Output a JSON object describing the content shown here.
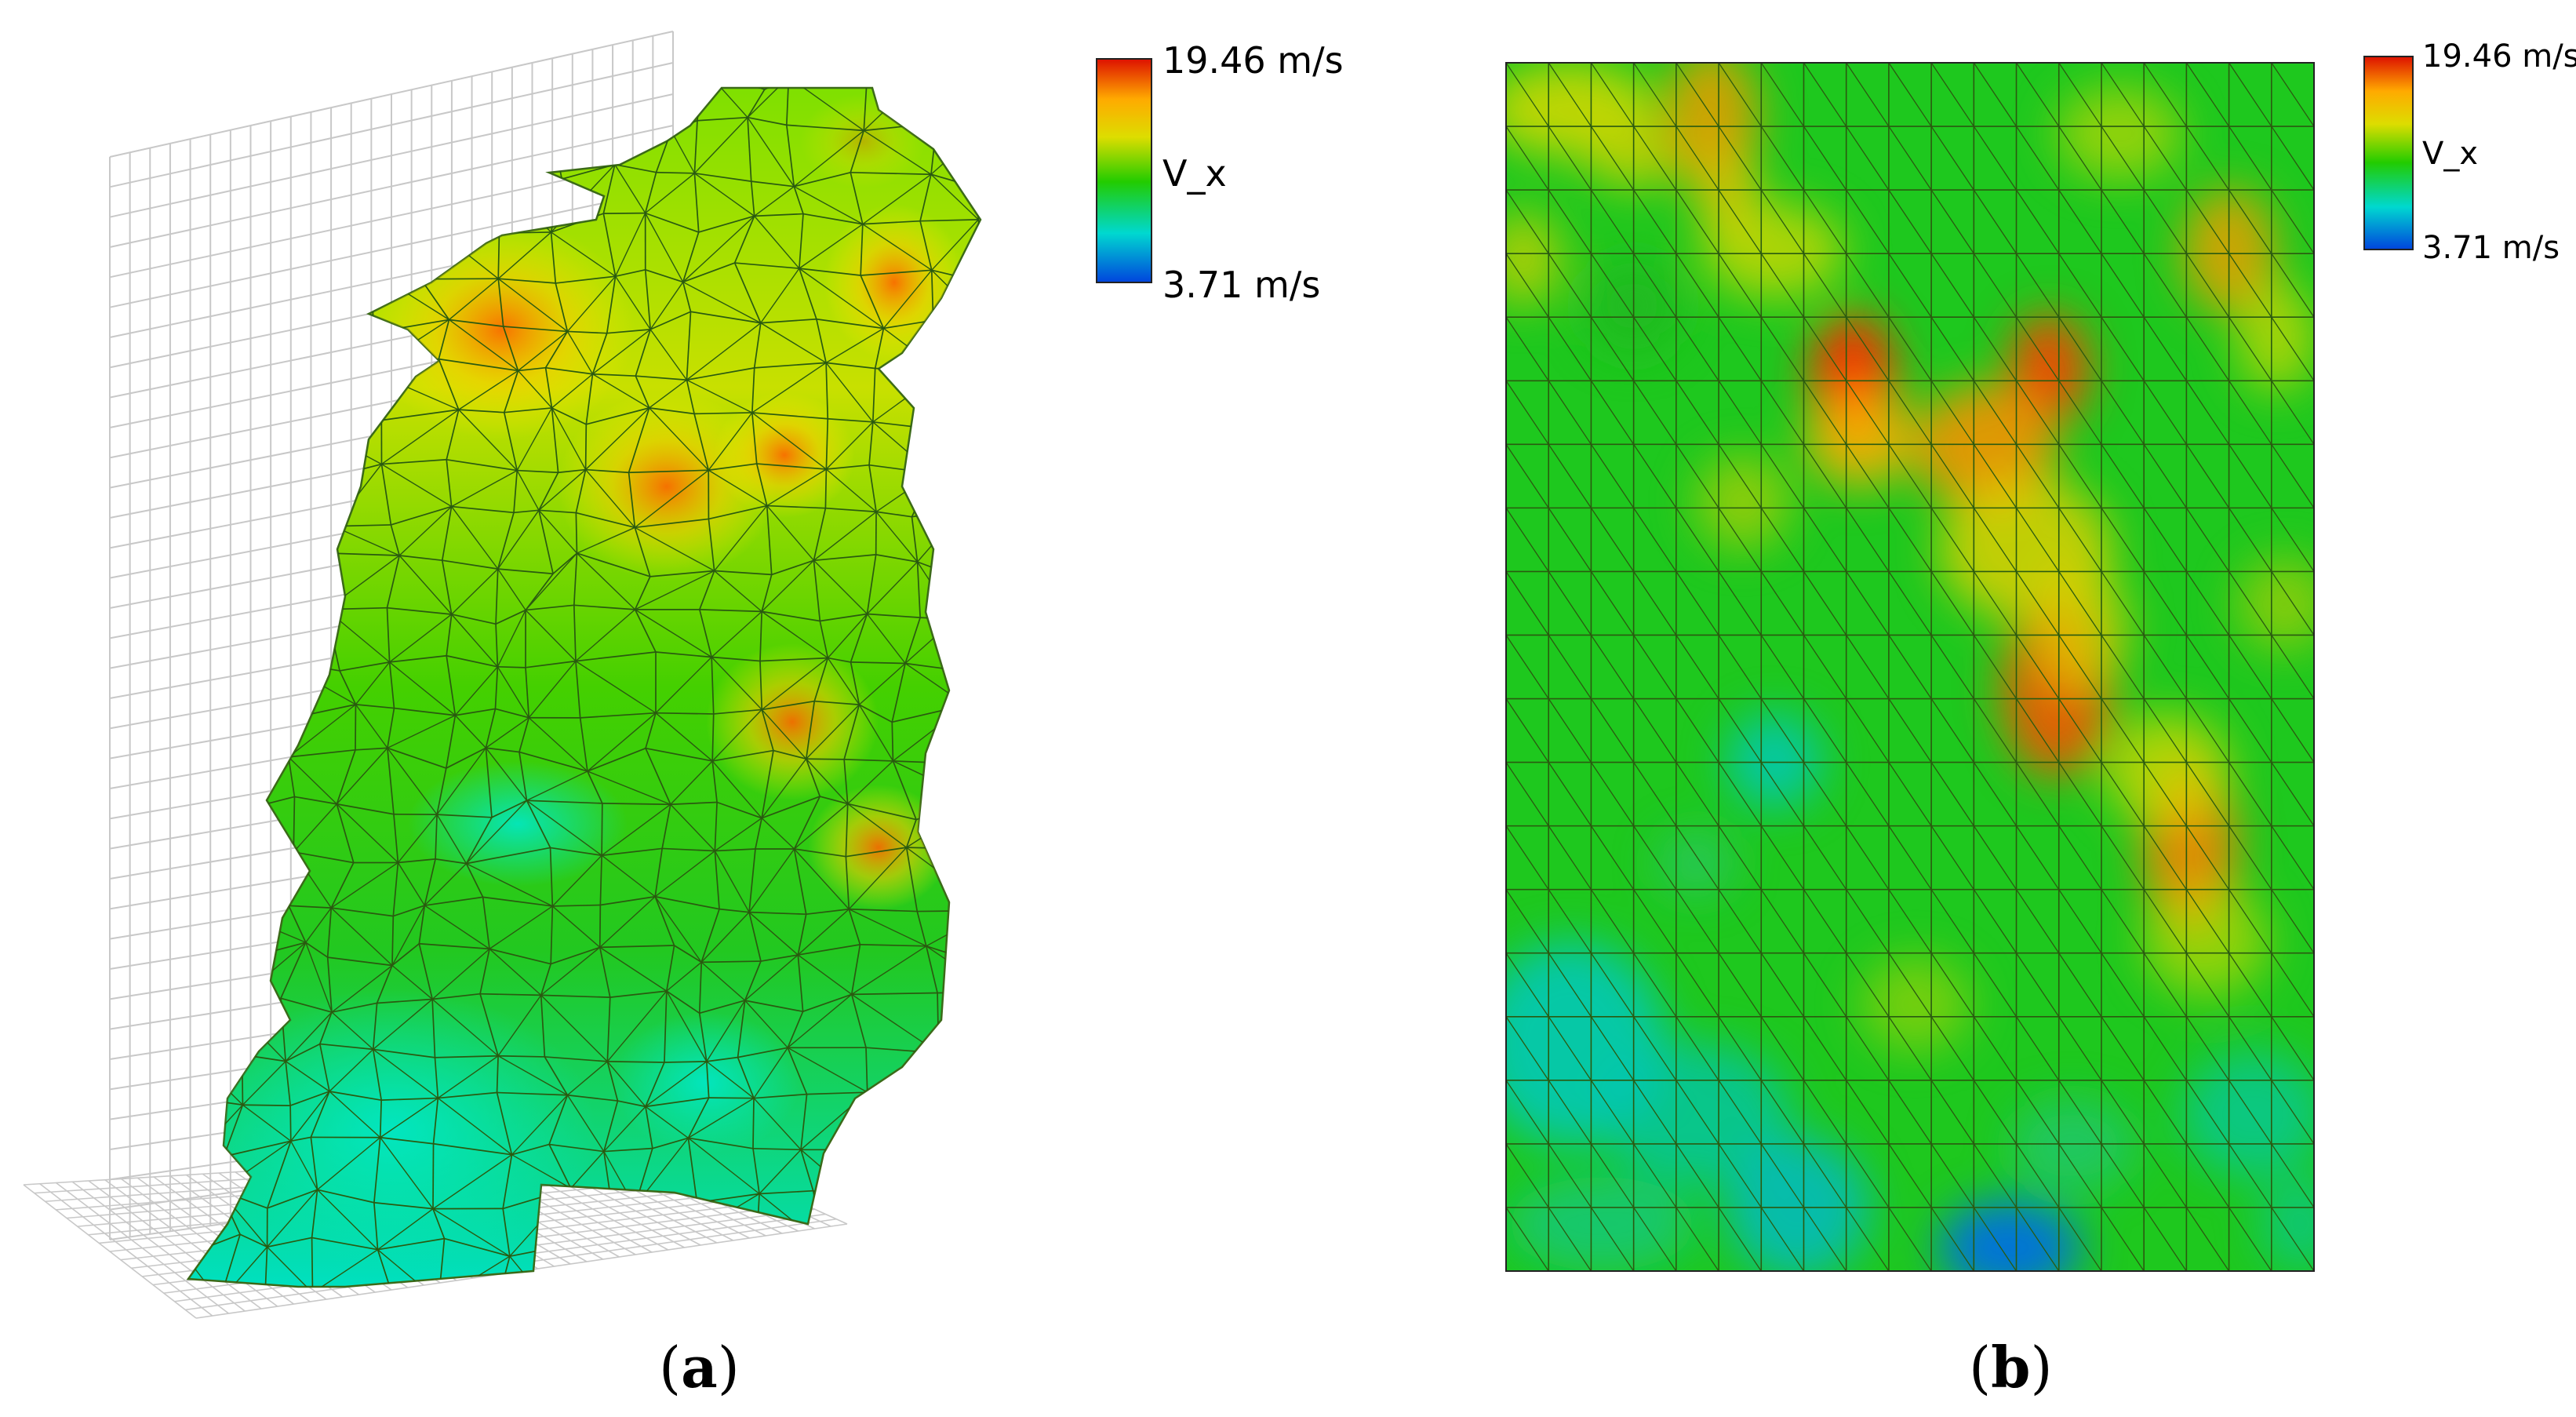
{
  "panels": [
    {
      "id": "a",
      "caption_open": "(",
      "caption_letter": "a",
      "caption_close": ")",
      "legend": {
        "max_label": "19.46 m/s",
        "variable_label": "V_x",
        "min_label": "3.71 m/s"
      }
    },
    {
      "id": "b",
      "caption_open": "(",
      "caption_letter": "b",
      "caption_close": ")",
      "legend": {
        "max_label": "19.46 m/s",
        "variable_label": "V_x",
        "min_label": "3.71 m/s"
      }
    }
  ],
  "colormap": [
    "#0044dd",
    "#00d8ff",
    "#00cc22",
    "#66dd00",
    "#eeee00",
    "#ff9900",
    "#dd1100"
  ],
  "colors": {
    "mesh_lines": "#2a5a10",
    "grid_lines": "#c8c8c8"
  }
}
